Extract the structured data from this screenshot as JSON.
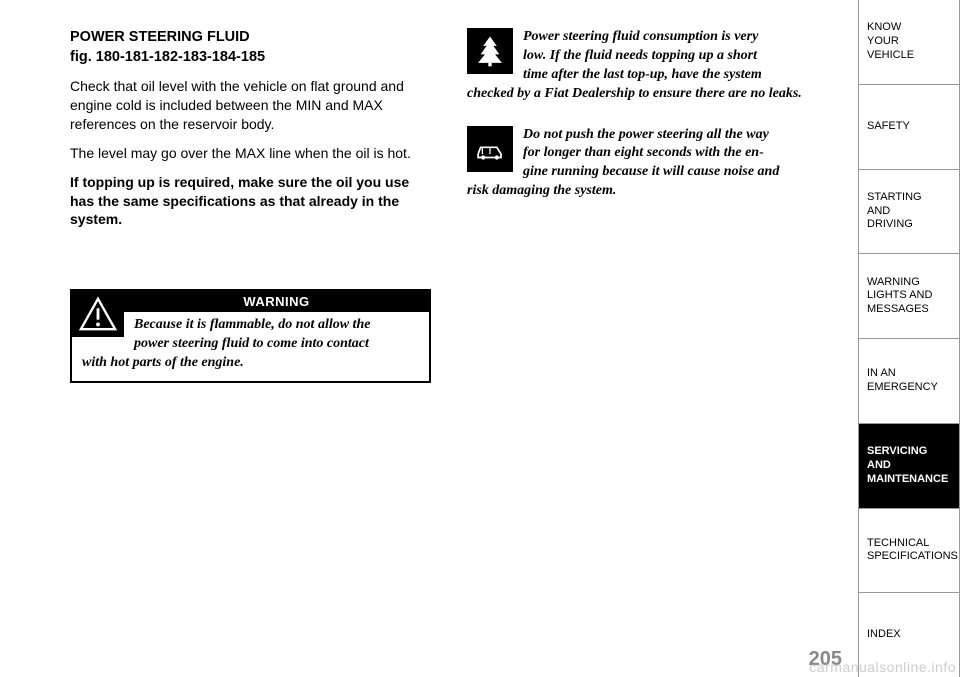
{
  "left": {
    "heading_l1": "POWER STEERING FLUID",
    "heading_l2": "fig. 180-181-182-183-184-185",
    "p1": "Check that oil level with the vehicle on flat ground and engine cold is included between the MIN and MAX references on the reservoir body.",
    "p2": "The level may go over the MAX line when the oil is hot.",
    "p3": "If topping up is required, make sure the oil you use has the same specifications as that already in the system.",
    "warning_label": "WARNING",
    "warning_l1": "Because it is flammable, do not allow the",
    "warning_l2": "power steering fluid to come into contact",
    "warning_l3": "with hot parts of the engine."
  },
  "right": {
    "eco_l1": "Power steering fluid consumption is very",
    "eco_l2": "low. If the fluid needs topping up a short",
    "eco_l3": "time after the last top-up, have the system",
    "eco_l4": "checked by a Fiat Dealership to ensure there are no leaks.",
    "car_l1": "Do not push the power steering all the way",
    "car_l2": "for longer than eight seconds with the en-",
    "car_l3": "gine running because it will cause noise and",
    "car_l4": "risk damaging the system."
  },
  "tabs": [
    "KNOW\nYOUR\nVEHICLE",
    "SAFETY",
    "STARTING\nAND\nDRIVING",
    "WARNING\nLIGHTS AND\nMESSAGES",
    "IN AN\nEMERGENCY",
    "SERVICING\nAND\nMAINTENANCE",
    "TECHNICAL\nSPECIFICATIONS",
    "INDEX"
  ],
  "active_tab_index": 5,
  "page_number": "205",
  "watermark": "carmanualsonline.info"
}
